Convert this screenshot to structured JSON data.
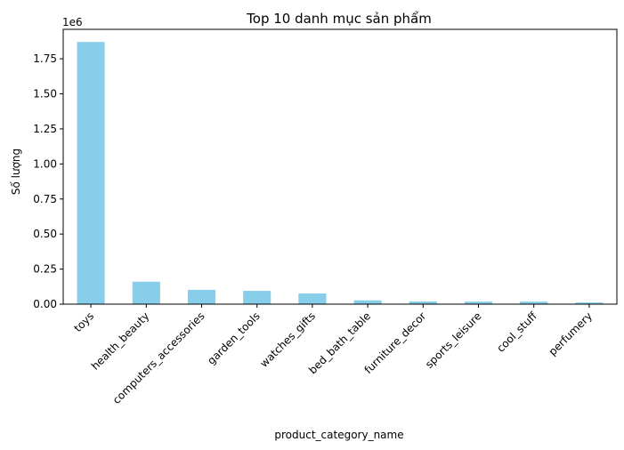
{
  "chart_data": {
    "type": "bar",
    "title": "Top 10 danh mục sản phẩm",
    "xlabel": "product_category_name",
    "ylabel": "Số lượng",
    "y_offset_label": "1e6",
    "categories": [
      "toys",
      "health_beauty",
      "computers_accessories",
      "garden_tools",
      "watches_gifts",
      "bed_bath_table",
      "furniture_decor",
      "sports_leisure",
      "cool_stuff",
      "perfumery"
    ],
    "values": [
      1870000,
      160000,
      102000,
      95000,
      76000,
      27000,
      19000,
      18000,
      18000,
      12000
    ],
    "ylim": [
      0,
      1960000
    ],
    "yticks": [
      0,
      250000,
      500000,
      750000,
      1000000,
      1250000,
      1500000,
      1750000
    ],
    "ytick_labels": [
      "0.00",
      "0.25",
      "0.50",
      "0.75",
      "1.00",
      "1.25",
      "1.50",
      "1.75"
    ],
    "bar_color": "#87CEEB",
    "grid": false,
    "legend": "none"
  }
}
